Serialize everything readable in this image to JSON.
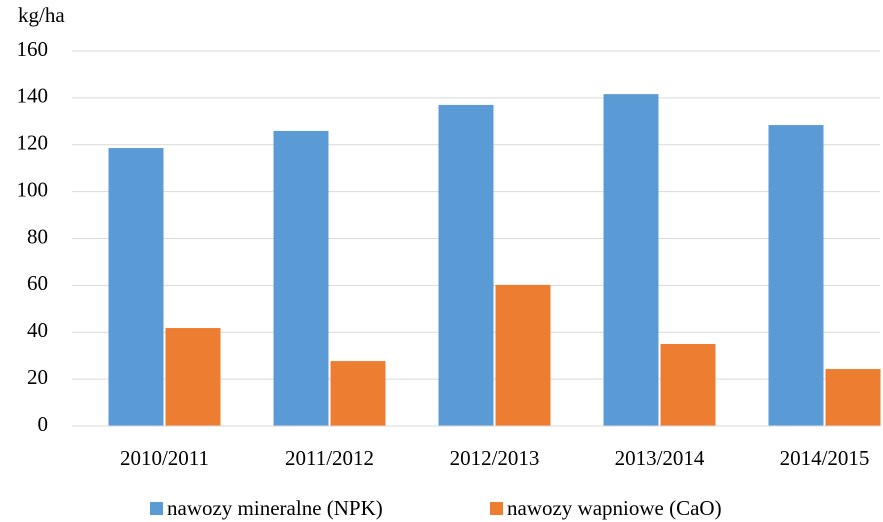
{
  "chart_data": {
    "type": "bar",
    "ylabel": "kg/ha",
    "categories": [
      "2010/2011",
      "2011/2012",
      "2012/2013",
      "2013/2014",
      "2014/2015"
    ],
    "series": [
      {
        "name": "nawozy mineralne (NPK)",
        "color": "#5b9bd5",
        "values": [
          118.6,
          125.9,
          137,
          141.6,
          128.4
        ]
      },
      {
        "name": "nawozy wapniowe (CaO)",
        "color": "#ed7d31",
        "values": [
          41.8,
          27.7,
          60.2,
          35,
          24.3
        ]
      }
    ],
    "ylim": [
      0,
      160
    ],
    "yticks": [
      0,
      20,
      40,
      60,
      80,
      100,
      120,
      140,
      160
    ],
    "grid": true
  }
}
